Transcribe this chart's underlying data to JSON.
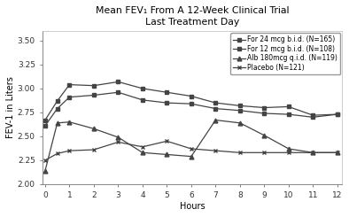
{
  "title_line1": "Mean FEV₁ From A 12-Week Clinical Trial",
  "title_line2": "Last Treatment Day",
  "xlabel": "Hours",
  "ylabel": "FEV-1 in Liters",
  "xlim": [
    -0.1,
    12.2
  ],
  "ylim": [
    2.0,
    3.6
  ],
  "yticks": [
    2.0,
    2.25,
    2.5,
    2.75,
    3.0,
    3.25,
    3.5
  ],
  "xticks": [
    0,
    1,
    2,
    3,
    4,
    5,
    6,
    7,
    8,
    9,
    10,
    11,
    12
  ],
  "hours": [
    0,
    0.5,
    1,
    2,
    3,
    4,
    5,
    6,
    7,
    8,
    9,
    10,
    11,
    12
  ],
  "for24": [
    2.67,
    2.87,
    3.04,
    3.03,
    3.07,
    3.0,
    2.96,
    2.92,
    2.85,
    2.82,
    2.8,
    2.81,
    2.72,
    2.73
  ],
  "for12": [
    2.61,
    2.79,
    2.91,
    2.93,
    2.96,
    2.88,
    2.85,
    2.84,
    2.79,
    2.77,
    2.74,
    2.73,
    2.7,
    2.73
  ],
  "alb": [
    2.14,
    2.64,
    2.65,
    2.58,
    2.49,
    2.33,
    2.31,
    2.29,
    2.67,
    2.64,
    2.51,
    2.37,
    2.33,
    2.33
  ],
  "placebo": [
    2.25,
    2.32,
    2.35,
    2.36,
    2.44,
    2.39,
    2.45,
    2.37,
    2.35,
    2.33,
    2.33,
    2.33,
    2.33,
    2.33
  ],
  "for24_label": "For 24 mcg b.i.d. (N=165)",
  "for12_label": "For 12 mcg b.i.d. (N=108)",
  "alb_label": "Alb 180mcg q.i.d. (N=119)",
  "placebo_label": "Placebo (N=121)",
  "line_color": "#444444",
  "bg_color": "#ffffff",
  "plot_bg": "#ffffff",
  "title_fontsize": 7.8,
  "label_fontsize": 7.0,
  "tick_fontsize": 6.5,
  "legend_fontsize": 5.5
}
